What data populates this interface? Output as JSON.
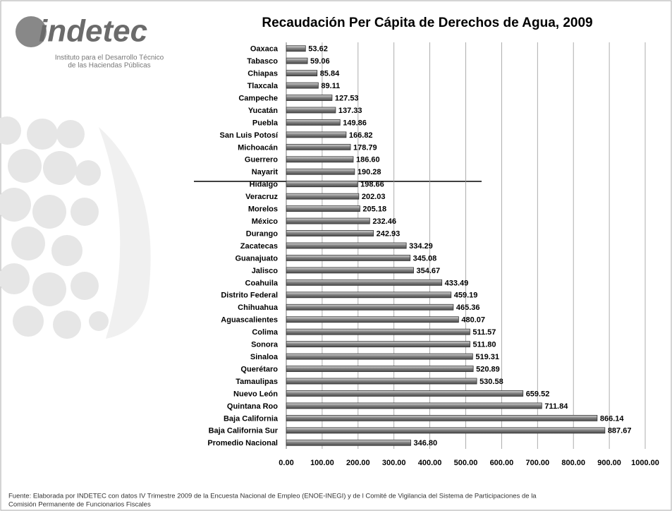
{
  "logo": {
    "name": "indetec",
    "line1": "Instituto para el Desarrollo Técnico",
    "line2": "de las Haciendas Públicas"
  },
  "chart_data": {
    "type": "bar",
    "orientation": "horizontal",
    "title": "Recaudación Per Cápita de Derechos de Agua, 2009",
    "categories": [
      "Oaxaca",
      "Tabasco",
      "Chiapas",
      "Tlaxcala",
      "Campeche",
      "Yucatán",
      "Puebla",
      "San Luis Potosí",
      "Michoacán",
      "Guerrero",
      "Nayarit",
      "Hidalgo",
      "Veracruz",
      "Morelos",
      "México",
      "Durango",
      "Zacatecas",
      "Guanajuato",
      "Jalisco",
      "Coahuila",
      "Distrito Federal",
      "Chihuahua",
      "Aguascalientes",
      "Colima",
      "Sonora",
      "Sinaloa",
      "Querétaro",
      "Tamaulipas",
      "Nuevo León",
      "Quintana Roo",
      "Baja California",
      "Baja California Sur",
      "Promedio Nacional"
    ],
    "values": [
      53.62,
      59.06,
      85.84,
      89.11,
      127.53,
      137.33,
      149.86,
      166.82,
      178.79,
      186.6,
      190.28,
      198.66,
      202.03,
      205.18,
      232.46,
      242.93,
      334.29,
      345.08,
      354.67,
      433.49,
      459.19,
      465.36,
      480.07,
      511.57,
      511.8,
      519.31,
      520.89,
      530.58,
      659.52,
      711.84,
      866.14,
      887.67,
      346.8
    ],
    "value_labels": [
      "53.62",
      "59.06",
      "85.84",
      "89.11",
      "127.53",
      "137.33",
      "149.86",
      "166.82",
      "178.79",
      "186.60",
      "190.28",
      "198.66",
      "202.03",
      "205.18",
      "232.46",
      "242.93",
      "334.29",
      "345.08",
      "354.67",
      "433.49",
      "459.19",
      "465.36",
      "480.07",
      "511.57",
      "511.80",
      "519.31",
      "520.89",
      "530.58",
      "659.52",
      "711.84",
      "866.14",
      "887.67",
      "346.80"
    ],
    "color": "#8c8c8c",
    "xlim": [
      0,
      1000
    ],
    "xticks": [
      {
        "value": 0,
        "label": "0.00"
      },
      {
        "value": 100,
        "label": "100.00"
      },
      {
        "value": 200,
        "label": "200.00"
      },
      {
        "value": 300,
        "label": "300.00"
      },
      {
        "value": 400,
        "label": "400.00"
      },
      {
        "value": 500,
        "label": "500.00"
      },
      {
        "value": 600,
        "label": "600.00"
      },
      {
        "value": 700,
        "label": "700.00"
      },
      {
        "value": 800,
        "label": "800.00"
      },
      {
        "value": 900,
        "label": "900.00"
      },
      {
        "value": 1000,
        "label": "1000.00"
      }
    ],
    "grid": true
  },
  "footer": {
    "lines": [
      "Fuente: Elaborada por INDETEC con datos IV Trimestre  2009 de la Encuesta Nacional de Empleo (ENOE-INEGI)  y de l Comité de Vigilancia del Sistema de Participaciones de la",
      "Comisión Permanente de Funcionarios Fiscales"
    ]
  }
}
